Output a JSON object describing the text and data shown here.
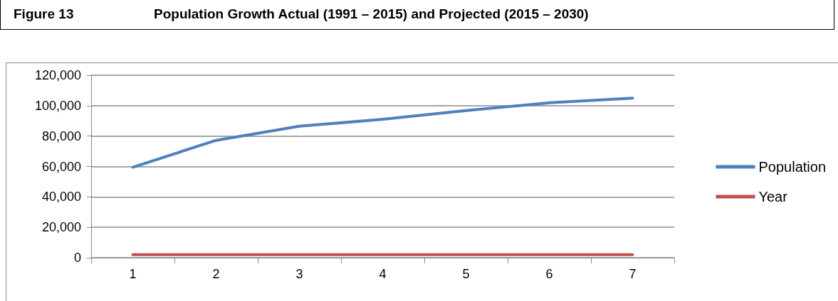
{
  "chart_data": {
    "type": "line",
    "title": "Figure 13",
    "subtitle": "Population Growth Actual (1991 – 2015) and Projected (2015 – 2030)",
    "categories": [
      "1",
      "2",
      "3",
      "4",
      "5",
      "6",
      "7"
    ],
    "series": [
      {
        "name": "Population",
        "color": "#4f81bd",
        "values": [
          59500,
          77200,
          86500,
          91000,
          96800,
          101900,
          104900
        ]
      },
      {
        "name": "Year",
        "color": "#c0504d",
        "values": [
          2000,
          2000,
          2000,
          2000,
          2000,
          2000,
          2000
        ]
      }
    ],
    "ylim": [
      0,
      120000
    ],
    "yticks": [
      {
        "value": 0,
        "label": "0"
      },
      {
        "value": 20000,
        "label": "20,000"
      },
      {
        "value": 40000,
        "label": "40,000"
      },
      {
        "value": 60000,
        "label": "60,000"
      },
      {
        "value": 80000,
        "label": "80,000"
      },
      {
        "value": 100000,
        "label": "100,000"
      },
      {
        "value": 120000,
        "label": "120,000"
      }
    ],
    "grid": "y",
    "legend": "right",
    "marker": "none",
    "line_style": "solid"
  }
}
